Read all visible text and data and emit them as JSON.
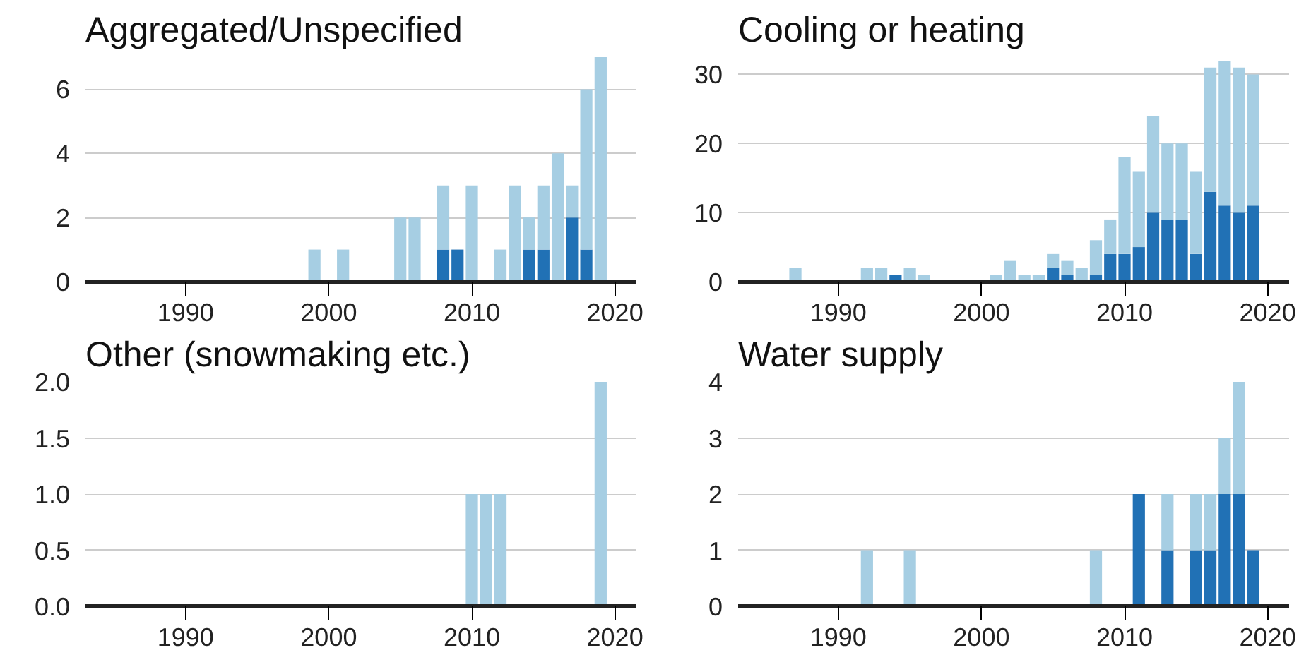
{
  "chart_data": [
    {
      "type": "bar",
      "stacked": true,
      "title": "Aggregated/Unspecified",
      "x": [
        1999,
        2001,
        2005,
        2006,
        2008,
        2009,
        2010,
        2012,
        2013,
        2014,
        2015,
        2016,
        2017,
        2018,
        2019
      ],
      "xlim": [
        1983,
        2021.5
      ],
      "xticks": [
        1990,
        2000,
        2010,
        2020
      ],
      "ylim": [
        0,
        7
      ],
      "yticks": [
        0,
        2,
        4,
        6
      ],
      "grid": "y",
      "series": [
        {
          "color": "#2171b5",
          "values": [
            null,
            null,
            null,
            null,
            1,
            1,
            null,
            null,
            null,
            1,
            1,
            null,
            2,
            1,
            null
          ]
        },
        {
          "color": "#a6cee3",
          "values": [
            1,
            1,
            2,
            2,
            2,
            null,
            3,
            1,
            3,
            1,
            2,
            4,
            1,
            5,
            7
          ]
        }
      ]
    },
    {
      "type": "bar",
      "stacked": true,
      "title": "Cooling or heating",
      "x": [
        1987,
        1992,
        1993,
        1994,
        1995,
        1996,
        2001,
        2002,
        2003,
        2004,
        2005,
        2006,
        2007,
        2008,
        2009,
        2010,
        2011,
        2012,
        2013,
        2014,
        2015,
        2016,
        2017,
        2018,
        2019
      ],
      "xlim": [
        1983,
        2021.5
      ],
      "xticks": [
        1990,
        2000,
        2010,
        2020
      ],
      "ylim": [
        0,
        32.5
      ],
      "yticks": [
        0,
        10,
        20,
        30
      ],
      "grid": "y",
      "series": [
        {
          "color": "#2171b5",
          "values": [
            null,
            null,
            null,
            1,
            null,
            null,
            null,
            null,
            null,
            null,
            2,
            1,
            null,
            1,
            4,
            4,
            5,
            10,
            9,
            9,
            4,
            13,
            11,
            10,
            11
          ]
        },
        {
          "color": "#a6cee3",
          "values": [
            2,
            2,
            2,
            null,
            2,
            1,
            1,
            3,
            1,
            1,
            2,
            2,
            2,
            5,
            5,
            14,
            11,
            14,
            11,
            11,
            12,
            18,
            21,
            21,
            19
          ]
        }
      ]
    },
    {
      "type": "bar",
      "stacked": true,
      "title": "Other (snowmaking etc.)",
      "x": [
        2010,
        2011,
        2012,
        2019
      ],
      "xlim": [
        1983,
        2021.5
      ],
      "xticks": [
        1990,
        2000,
        2010,
        2020
      ],
      "ylim": [
        0,
        2
      ],
      "yticks": [
        {
          "value": 0,
          "label": "0.0"
        },
        {
          "value": 0.5,
          "label": "0.5"
        },
        {
          "value": 1,
          "label": "1.0"
        },
        {
          "value": 1.5,
          "label": "1.5"
        },
        {
          "value": 2,
          "label": "2.0"
        }
      ],
      "grid": "y",
      "series": [
        {
          "color": "#a6cee3",
          "values": [
            1,
            1,
            1,
            2
          ]
        }
      ]
    },
    {
      "type": "bar",
      "stacked": true,
      "title": "Water supply",
      "x": [
        1992,
        1995,
        2008,
        2011,
        2013,
        2015,
        2016,
        2017,
        2018,
        2019
      ],
      "xlim": [
        1983,
        2021.5
      ],
      "xticks": [
        1990,
        2000,
        2010,
        2020
      ],
      "ylim": [
        0,
        4
      ],
      "yticks": [
        0,
        1,
        2,
        3,
        4
      ],
      "grid": "y",
      "series": [
        {
          "color": "#2171b5",
          "values": [
            null,
            null,
            null,
            2,
            1,
            1,
            1,
            2,
            2,
            1
          ]
        },
        {
          "color": "#a6cee3",
          "values": [
            1,
            1,
            1,
            null,
            1,
            1,
            1,
            1,
            2,
            null
          ]
        }
      ]
    }
  ]
}
